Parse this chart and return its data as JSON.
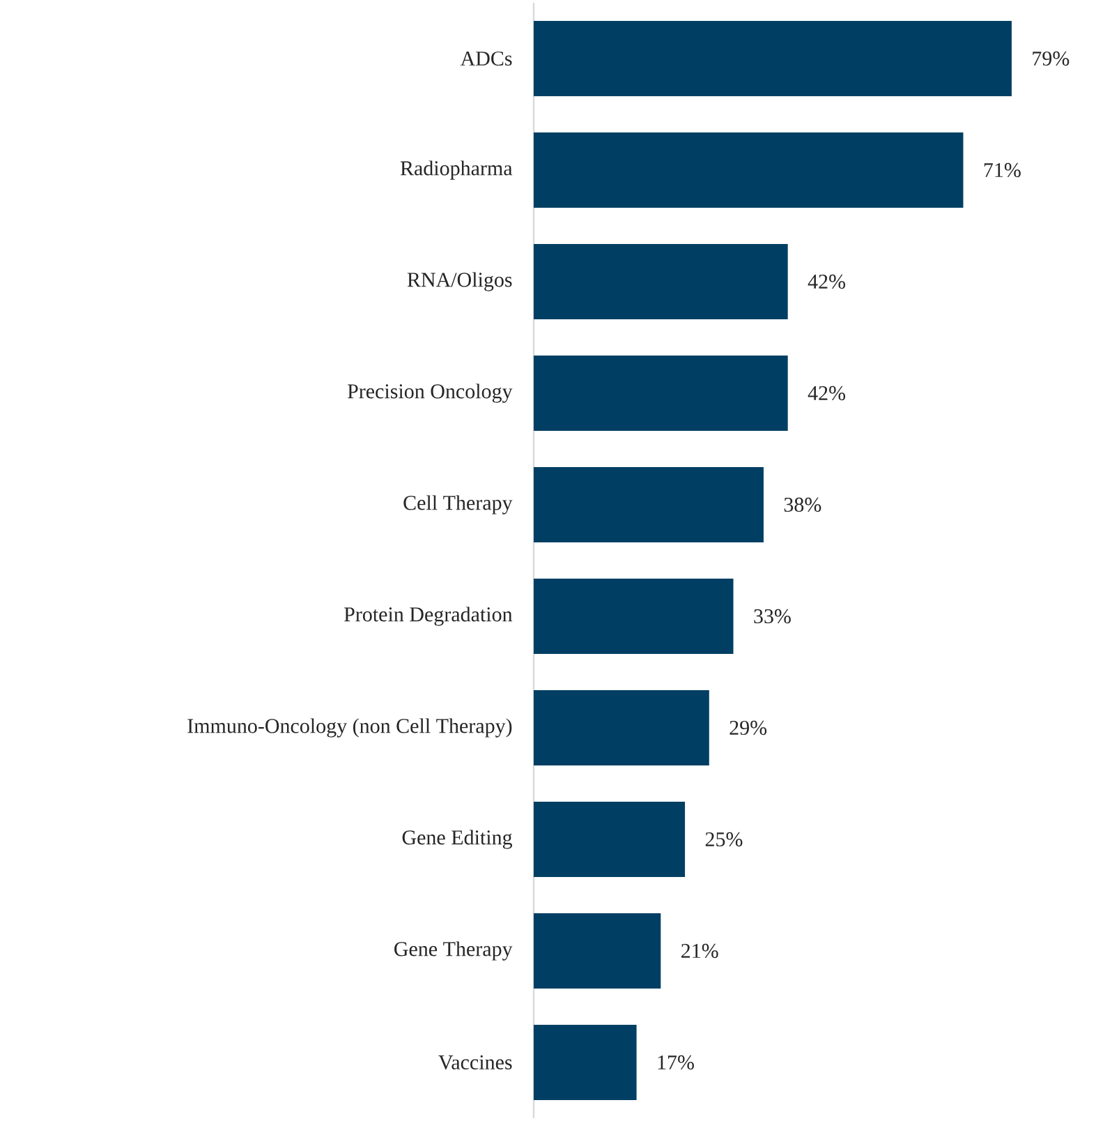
{
  "chart_data": {
    "type": "bar",
    "orientation": "horizontal",
    "categories": [
      "ADCs",
      "Radiopharma",
      "RNA/Oligos",
      "Precision Oncology",
      "Cell Therapy",
      "Protein Degradation",
      "Immuno-Oncology (non Cell Therapy)",
      "Gene Editing",
      "Gene Therapy",
      "Vaccines"
    ],
    "values": [
      79,
      71,
      42,
      42,
      38,
      33,
      29,
      25,
      21,
      17
    ],
    "value_labels": [
      "79%",
      "71%",
      "42%",
      "42%",
      "38%",
      "33%",
      "29%",
      "25%",
      "21%",
      "17%"
    ],
    "color": "#003f63",
    "tick_labels": "y"
  }
}
